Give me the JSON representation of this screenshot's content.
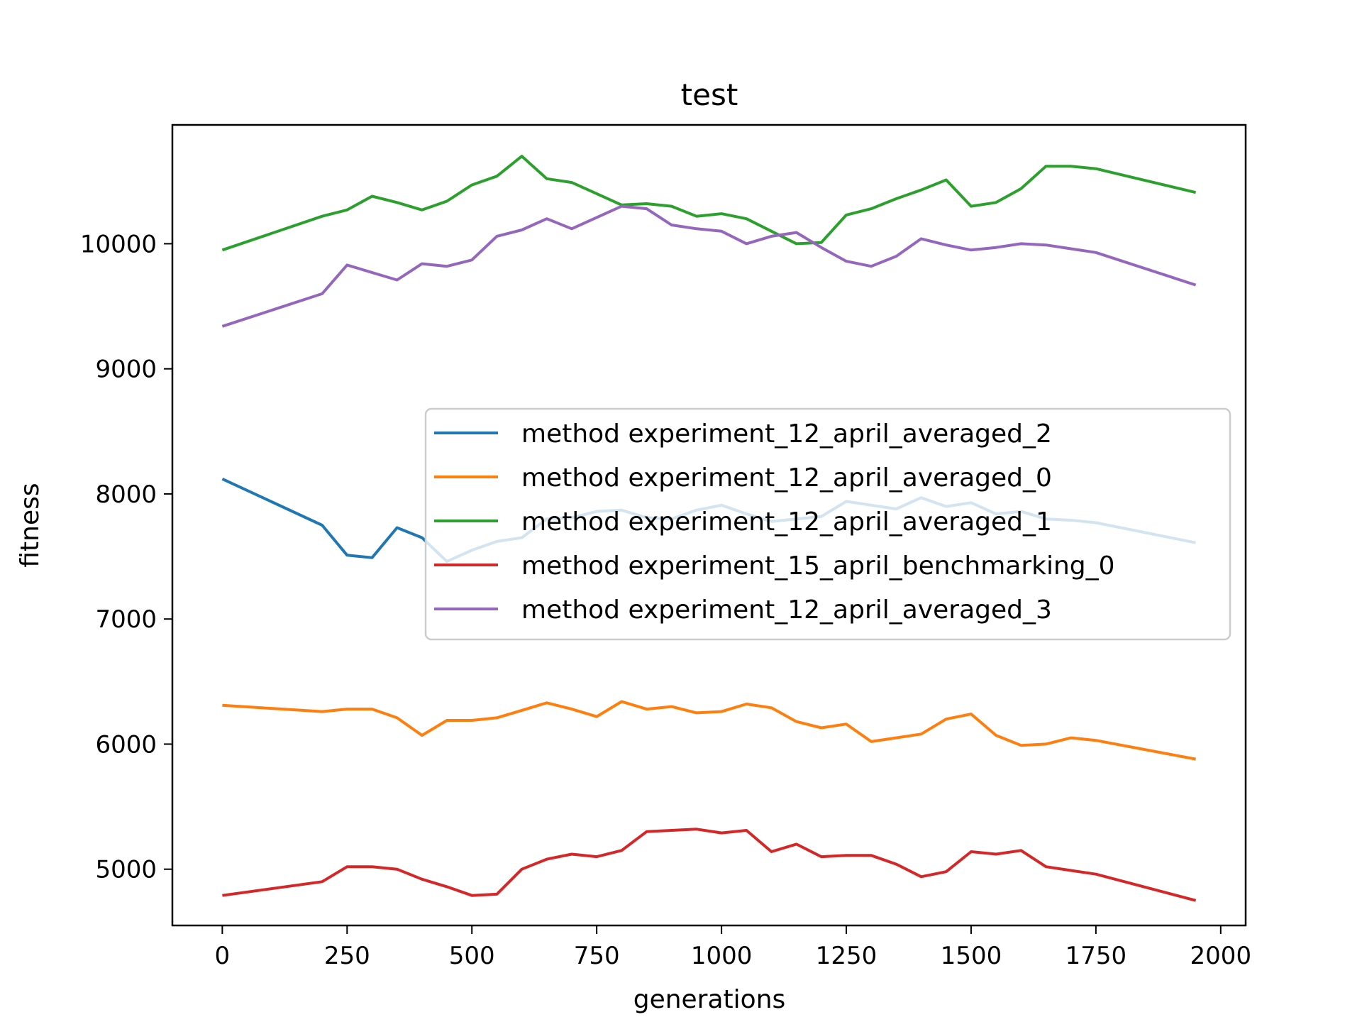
{
  "chart_data": {
    "type": "line",
    "title": "test",
    "xlabel": "generations",
    "ylabel": "fitness",
    "xlim": [
      -100,
      2050
    ],
    "ylim": [
      4550,
      10950
    ],
    "xticks": [
      0,
      250,
      500,
      750,
      1000,
      1250,
      1500,
      1750,
      2000
    ],
    "yticks": [
      5000,
      6000,
      7000,
      8000,
      9000,
      10000
    ],
    "legend_position": "center-right",
    "grid": false,
    "x": [
      0,
      200,
      250,
      300,
      350,
      400,
      450,
      500,
      550,
      600,
      650,
      700,
      750,
      800,
      850,
      900,
      950,
      1000,
      1050,
      1100,
      1150,
      1200,
      1250,
      1300,
      1350,
      1400,
      1450,
      1500,
      1550,
      1600,
      1650,
      1700,
      1750,
      1950
    ],
    "series": [
      {
        "name": "method experiment_12_april_averaged_2",
        "color": "#1f77b4",
        "values": [
          8120,
          7750,
          7510,
          7490,
          7730,
          7650,
          7460,
          7550,
          7620,
          7650,
          7800,
          7810,
          7860,
          7870,
          7810,
          7800,
          7870,
          7910,
          7840,
          7780,
          7800,
          7820,
          7940,
          7910,
          7880,
          7970,
          7900,
          7930,
          7840,
          7860,
          7800,
          7790,
          7770,
          7610
        ]
      },
      {
        "name": "method experiment_12_april_averaged_0",
        "color": "#ff7f0e",
        "values": [
          6310,
          6260,
          6280,
          6280,
          6210,
          6070,
          6190,
          6190,
          6210,
          6270,
          6330,
          6280,
          6220,
          6340,
          6280,
          6300,
          6250,
          6260,
          6320,
          6290,
          6180,
          6130,
          6160,
          6020,
          6050,
          6080,
          6200,
          6240,
          6070,
          5990,
          6000,
          6050,
          6030,
          5880
        ]
      },
      {
        "name": "method experiment_12_april_averaged_1",
        "color": "#2ca02c",
        "values": [
          9950,
          10220,
          10270,
          10380,
          10330,
          10270,
          10340,
          10470,
          10540,
          10700,
          10520,
          10490,
          10400,
          10310,
          10320,
          10300,
          10220,
          10240,
          10200,
          10100,
          10000,
          10010,
          10230,
          10280,
          10360,
          10430,
          10510,
          10300,
          10330,
          10440,
          10620,
          10620,
          10600,
          10410
        ]
      },
      {
        "name": "method experiment_15_april_benchmarking_0",
        "color": "#d62728",
        "values": [
          4790,
          4900,
          5020,
          5020,
          5000,
          4920,
          4860,
          4790,
          4800,
          5000,
          5080,
          5120,
          5100,
          5150,
          5300,
          5310,
          5320,
          5290,
          5310,
          5140,
          5200,
          5100,
          5110,
          5110,
          5040,
          4940,
          4980,
          5140,
          5120,
          5150,
          5020,
          4990,
          4960,
          4750
        ]
      },
      {
        "name": "method experiment_12_april_averaged_3",
        "color": "#9467bd",
        "values": [
          9340,
          9600,
          9830,
          9770,
          9710,
          9840,
          9820,
          9870,
          10060,
          10110,
          10200,
          10120,
          10210,
          10300,
          10280,
          10150,
          10120,
          10100,
          10000,
          10060,
          10090,
          9970,
          9860,
          9820,
          9900,
          10040,
          9990,
          9950,
          9970,
          10000,
          9990,
          9960,
          9930,
          9670
        ]
      }
    ]
  }
}
